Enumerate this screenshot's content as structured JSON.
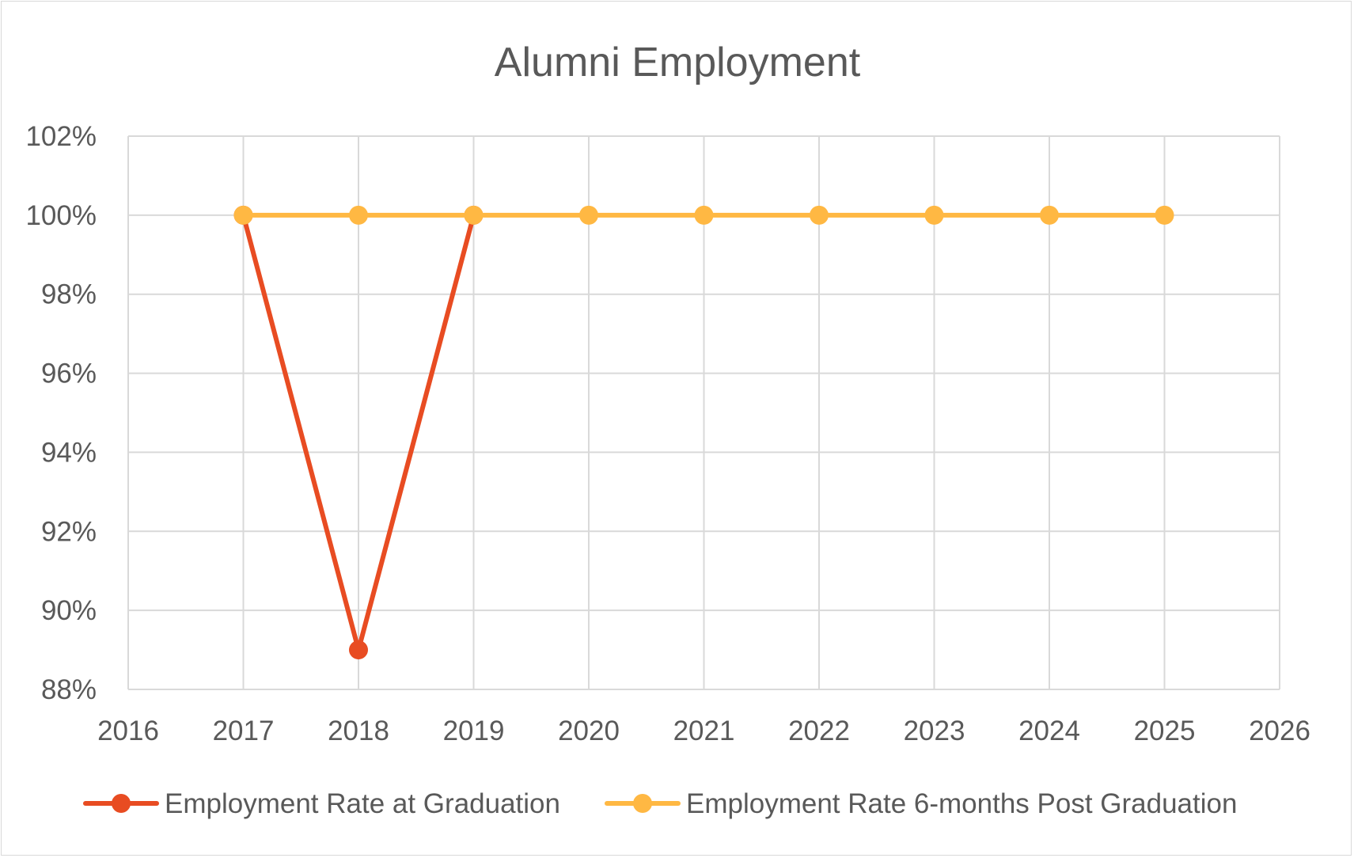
{
  "chart_data": {
    "type": "line",
    "title": "Alumni Employment",
    "xlabel": "",
    "ylabel": "",
    "x": [
      2017,
      2018,
      2019,
      2020,
      2021,
      2022,
      2023,
      2024,
      2025
    ],
    "xlim": [
      2016,
      2026
    ],
    "ylim": [
      88,
      102
    ],
    "x_ticks": [
      "2016",
      "2017",
      "2018",
      "2019",
      "2020",
      "2021",
      "2022",
      "2023",
      "2024",
      "2025",
      "2026"
    ],
    "y_ticks": [
      "88%",
      "90%",
      "92%",
      "94%",
      "96%",
      "98%",
      "100%",
      "102%"
    ],
    "grid": true,
    "legend_position": "bottom",
    "series": [
      {
        "name": "Employment Rate at Graduation",
        "x": [
          2017,
          2018,
          2019
        ],
        "values": [
          100,
          89,
          100
        ],
        "color": "#e84c22"
      },
      {
        "name": "Employment Rate 6-months Post Graduation",
        "x": [
          2017,
          2018,
          2019,
          2020,
          2021,
          2022,
          2023,
          2024,
          2025
        ],
        "values": [
          100,
          100,
          100,
          100,
          100,
          100,
          100,
          100,
          100
        ],
        "color": "#ffb843"
      }
    ]
  }
}
